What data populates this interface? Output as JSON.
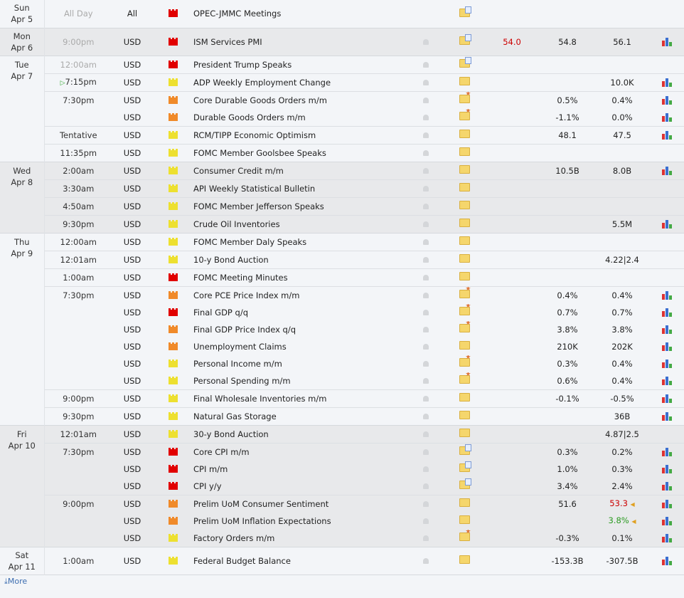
{
  "colors": {
    "high": "#e10000",
    "medium": "#f08a2a",
    "low": "#ede030",
    "actual_worse": "#cc0000",
    "better": "#2a9a20"
  },
  "days": [
    {
      "day": "Sun",
      "date": "Apr 5",
      "alt": false,
      "tall": true,
      "rows": [
        {
          "time": "All Day",
          "dim": true,
          "cur": "All",
          "impact": "high",
          "event": "OPEC-JMMC Meetings",
          "folder": "doc",
          "bell": false,
          "actual": "",
          "forecast": "",
          "previous": "",
          "graph": false
        }
      ]
    },
    {
      "day": "Mon",
      "date": "Apr 6",
      "alt": true,
      "tall": true,
      "rows": [
        {
          "time": "9:00pm",
          "dim": true,
          "cur": "USD",
          "impact": "high",
          "event": "ISM Services PMI",
          "folder": "doc",
          "bell": true,
          "actual": "54.0",
          "actual_color": "#cc0000",
          "forecast": "54.8",
          "previous": "56.1",
          "graph": true
        }
      ]
    },
    {
      "day": "Tue",
      "date": "Apr 7",
      "alt": false,
      "rows": [
        {
          "time": "12:00am",
          "dim": true,
          "cur": "USD",
          "impact": "high",
          "event": "President Trump Speaks",
          "folder": "doc",
          "bell": true,
          "actual": "",
          "forecast": "",
          "previous": "",
          "graph": false
        },
        {
          "time": "7:15pm",
          "next": true,
          "cur": "USD",
          "impact": "low",
          "event": "ADP Weekly Employment Change",
          "folder": "plain",
          "bell": true,
          "actual": "",
          "forecast": "",
          "previous": "10.0K",
          "graph": true
        },
        {
          "time": "7:30pm",
          "cur": "USD",
          "impact": "medium",
          "event": "Core Durable Goods Orders m/m",
          "folder": "star",
          "bell": true,
          "actual": "",
          "forecast": "0.5%",
          "previous": "0.4%",
          "graph": true
        },
        {
          "time": "",
          "cur": "USD",
          "impact": "medium",
          "event": "Durable Goods Orders m/m",
          "folder": "star",
          "bell": true,
          "actual": "",
          "forecast": "-1.1%",
          "previous": "0.0%",
          "graph": true
        },
        {
          "time": "Tentative",
          "cur": "USD",
          "impact": "low",
          "event": "RCM/TIPP Economic Optimism",
          "folder": "plain",
          "bell": true,
          "actual": "",
          "forecast": "48.1",
          "previous": "47.5",
          "graph": true
        },
        {
          "time": "11:35pm",
          "cur": "USD",
          "impact": "low",
          "event": "FOMC Member Goolsbee Speaks",
          "folder": "plain",
          "bell": true,
          "actual": "",
          "forecast": "",
          "previous": "",
          "graph": false
        }
      ]
    },
    {
      "day": "Wed",
      "date": "Apr 8",
      "alt": true,
      "rows": [
        {
          "time": "2:00am",
          "cur": "USD",
          "impact": "low",
          "event": "Consumer Credit m/m",
          "folder": "plain",
          "bell": true,
          "actual": "",
          "forecast": "10.5B",
          "previous": "8.0B",
          "graph": true
        },
        {
          "time": "3:30am",
          "cur": "USD",
          "impact": "low",
          "event": "API Weekly Statistical Bulletin",
          "folder": "plain",
          "bell": true,
          "actual": "",
          "forecast": "",
          "previous": "",
          "graph": false
        },
        {
          "time": "4:50am",
          "cur": "USD",
          "impact": "low",
          "event": "FOMC Member Jefferson Speaks",
          "folder": "plain",
          "bell": true,
          "actual": "",
          "forecast": "",
          "previous": "",
          "graph": false
        },
        {
          "time": "9:30pm",
          "cur": "USD",
          "impact": "low",
          "event": "Crude Oil Inventories",
          "folder": "plain",
          "bell": true,
          "actual": "",
          "forecast": "",
          "previous": "5.5M",
          "graph": true
        }
      ]
    },
    {
      "day": "Thu",
      "date": "Apr 9",
      "alt": false,
      "rows": [
        {
          "time": "12:00am",
          "cur": "USD",
          "impact": "low",
          "event": "FOMC Member Daly Speaks",
          "folder": "plain",
          "bell": true,
          "actual": "",
          "forecast": "",
          "previous": "",
          "graph": false
        },
        {
          "time": "12:01am",
          "cur": "USD",
          "impact": "low",
          "event": "10-y Bond Auction",
          "folder": "plain",
          "bell": true,
          "actual": "",
          "forecast": "",
          "previous": "4.22|2.4",
          "graph": false
        },
        {
          "time": "1:00am",
          "cur": "USD",
          "impact": "high",
          "event": "FOMC Meeting Minutes",
          "folder": "plain",
          "bell": true,
          "actual": "",
          "forecast": "",
          "previous": "",
          "graph": false
        },
        {
          "time": "7:30pm",
          "cur": "USD",
          "impact": "medium",
          "event": "Core PCE Price Index m/m",
          "folder": "star",
          "bell": true,
          "actual": "",
          "forecast": "0.4%",
          "previous": "0.4%",
          "graph": true
        },
        {
          "time": "",
          "cur": "USD",
          "impact": "high",
          "event": "Final GDP q/q",
          "folder": "star",
          "bell": true,
          "actual": "",
          "forecast": "0.7%",
          "previous": "0.7%",
          "graph": true
        },
        {
          "time": "",
          "cur": "USD",
          "impact": "medium",
          "event": "Final GDP Price Index q/q",
          "folder": "star",
          "bell": true,
          "actual": "",
          "forecast": "3.8%",
          "previous": "3.8%",
          "graph": true
        },
        {
          "time": "",
          "cur": "USD",
          "impact": "medium",
          "event": "Unemployment Claims",
          "folder": "plain",
          "bell": true,
          "actual": "",
          "forecast": "210K",
          "previous": "202K",
          "graph": true
        },
        {
          "time": "",
          "cur": "USD",
          "impact": "low",
          "event": "Personal Income m/m",
          "folder": "star",
          "bell": true,
          "actual": "",
          "forecast": "0.3%",
          "previous": "0.4%",
          "graph": true
        },
        {
          "time": "",
          "cur": "USD",
          "impact": "low",
          "event": "Personal Spending m/m",
          "folder": "star",
          "bell": true,
          "actual": "",
          "forecast": "0.6%",
          "previous": "0.4%",
          "graph": true
        },
        {
          "time": "9:00pm",
          "cur": "USD",
          "impact": "low",
          "event": "Final Wholesale Inventories m/m",
          "folder": "plain",
          "bell": true,
          "actual": "",
          "forecast": "-0.1%",
          "previous": "-0.5%",
          "graph": true
        },
        {
          "time": "9:30pm",
          "cur": "USD",
          "impact": "low",
          "event": "Natural Gas Storage",
          "folder": "plain",
          "bell": true,
          "actual": "",
          "forecast": "",
          "previous": "36B",
          "graph": true
        }
      ]
    },
    {
      "day": "Fri",
      "date": "Apr 10",
      "alt": true,
      "rows": [
        {
          "time": "12:01am",
          "cur": "USD",
          "impact": "low",
          "event": "30-y Bond Auction",
          "folder": "plain",
          "bell": true,
          "actual": "",
          "forecast": "",
          "previous": "4.87|2.5",
          "graph": false
        },
        {
          "time": "7:30pm",
          "cur": "USD",
          "impact": "high",
          "event": "Core CPI m/m",
          "folder": "doc",
          "bell": true,
          "actual": "",
          "forecast": "0.3%",
          "previous": "0.2%",
          "graph": true
        },
        {
          "time": "",
          "cur": "USD",
          "impact": "high",
          "event": "CPI m/m",
          "folder": "doc",
          "bell": true,
          "actual": "",
          "forecast": "1.0%",
          "previous": "0.3%",
          "graph": true
        },
        {
          "time": "",
          "cur": "USD",
          "impact": "high",
          "event": "CPI y/y",
          "folder": "doc",
          "bell": true,
          "actual": "",
          "forecast": "3.4%",
          "previous": "2.4%",
          "graph": true
        },
        {
          "time": "9:00pm",
          "cur": "USD",
          "impact": "medium",
          "event": "Prelim UoM Consumer Sentiment",
          "folder": "plain",
          "bell": true,
          "actual": "",
          "forecast": "51.6",
          "previous": "53.3",
          "previous_color": "#cc0000",
          "revised": true,
          "graph": true
        },
        {
          "time": "",
          "cur": "USD",
          "impact": "medium",
          "event": "Prelim UoM Inflation Expectations",
          "folder": "plain",
          "bell": true,
          "actual": "",
          "forecast": "",
          "previous": "3.8%",
          "previous_color": "#2a9a20",
          "revised": true,
          "graph": true
        },
        {
          "time": "",
          "cur": "USD",
          "impact": "low",
          "event": "Factory Orders m/m",
          "folder": "star",
          "bell": true,
          "actual": "",
          "forecast": "-0.3%",
          "previous": "0.1%",
          "graph": true
        }
      ]
    },
    {
      "day": "Sat",
      "date": "Apr 11",
      "alt": false,
      "tall": true,
      "rows": [
        {
          "time": "1:00am",
          "cur": "USD",
          "impact": "low",
          "event": "Federal Budget Balance",
          "folder": "plain",
          "bell": true,
          "actual": "",
          "forecast": "-153.3B",
          "previous": "-307.5B",
          "graph": true
        }
      ]
    }
  ],
  "more_label": "More"
}
